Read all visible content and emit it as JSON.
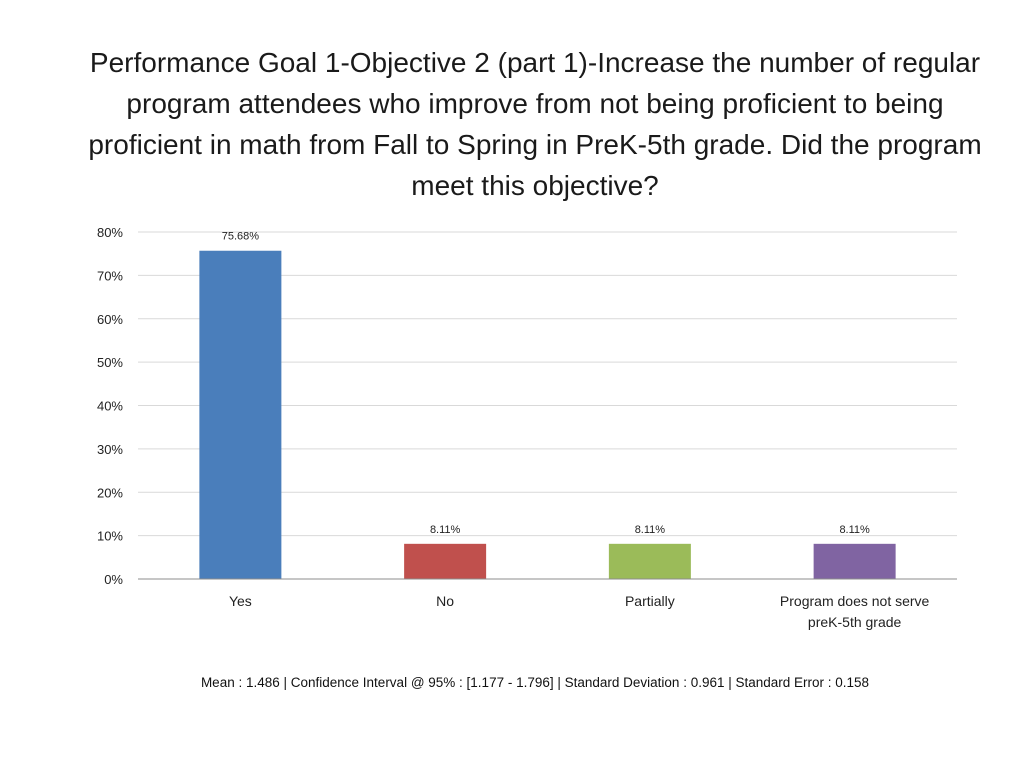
{
  "chart_data": {
    "type": "bar",
    "title": "Performance Goal 1-Objective 2 (part 1)-Increase the number of regular program attendees who improve from not being proficient to being proficient in math from Fall to Spring in PreK-5th grade. Did the program meet this objective?",
    "categories": [
      "Yes",
      "No",
      "Partially",
      "Program does not serve preK-5th grade"
    ],
    "category_lines": [
      [
        "Yes"
      ],
      [
        "No"
      ],
      [
        "Partially"
      ],
      [
        "Program does not serve",
        "preK-5th grade"
      ]
    ],
    "values": [
      75.68,
      8.11,
      8.11,
      8.11
    ],
    "data_labels": [
      "75.68%",
      "8.11%",
      "8.11%",
      "8.11%"
    ],
    "colors": [
      "#4a7ebb",
      "#c0504d",
      "#9bbb59",
      "#8064a2"
    ],
    "xlabel": "",
    "ylabel": "",
    "ylim": [
      0,
      80
    ],
    "yticks": [
      0,
      10,
      20,
      30,
      40,
      50,
      60,
      70,
      80
    ],
    "ytick_labels": [
      "0%",
      "10%",
      "20%",
      "30%",
      "40%",
      "50%",
      "60%",
      "70%",
      "80%"
    ],
    "grid": true,
    "legend": "none"
  },
  "stats_footer": "Mean : 1.486   |  Confidence Interval @ 95% : [1.177 - 1.796]   |   Standard Deviation : 0.961   |   Standard Error : 0.158"
}
